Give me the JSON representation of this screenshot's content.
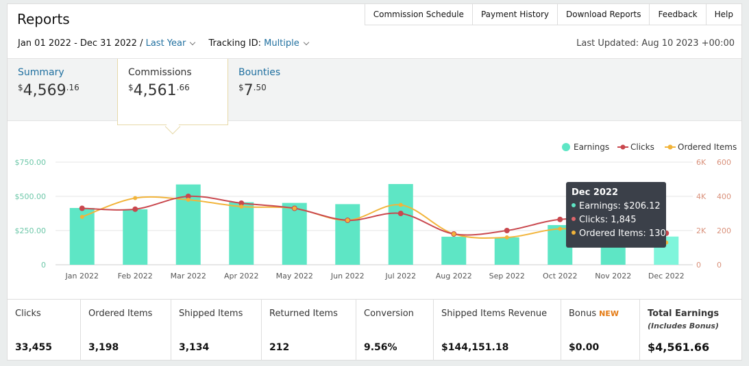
{
  "header": {
    "title": "Reports"
  },
  "topnav": [
    "Commission Schedule",
    "Payment History",
    "Download Reports",
    "Feedback",
    "Help"
  ],
  "filters": {
    "date_range": "Jan 01 2022 - Dec 31 2022 /",
    "period_link": "Last Year",
    "tracking_label": "Tracking ID:",
    "tracking_value": "Multiple",
    "last_updated": "Last Updated: Aug 10 2023 +00:00"
  },
  "tabs": [
    {
      "label": "Summary",
      "dollar": "$",
      "whole": "4,569",
      "cents": ".16"
    },
    {
      "label": "Commissions",
      "dollar": "$",
      "whole": "4,561",
      "cents": ".66"
    },
    {
      "label": "Bounties",
      "dollar": "$",
      "whole": "7",
      "cents": ".50"
    }
  ],
  "colors": {
    "earnings": "#5ee6c5",
    "earnings_highlight": "#7ff5db",
    "clicks": "#c9484e",
    "ordered": "#f2b43a",
    "link": "#1f6f9f",
    "tooltip_bg": "#3b4049",
    "new_badge": "#e47911"
  },
  "chart_data": {
    "type": "bar",
    "categories": [
      "Jan 2022",
      "Feb 2022",
      "Mar 2022",
      "Apr 2022",
      "May 2022",
      "Jun 2022",
      "Jul 2022",
      "Aug 2022",
      "Sep 2022",
      "Oct 2022",
      "Nov 2022",
      "Dec 2022"
    ],
    "series": [
      {
        "name": "Earnings",
        "type": "bar",
        "axis": "left",
        "values": [
          415,
          405,
          587,
          457,
          452,
          443,
          590,
          205,
          200,
          290,
          215,
          206.12
        ]
      },
      {
        "name": "Clicks",
        "type": "line",
        "axis": "right1",
        "values": [
          3300,
          3250,
          4000,
          3600,
          3300,
          2600,
          3000,
          1800,
          2000,
          2650,
          2600,
          1845
        ]
      },
      {
        "name": "Ordered Items",
        "type": "line",
        "axis": "right2",
        "values": [
          280,
          390,
          380,
          340,
          330,
          260,
          350,
          180,
          160,
          210,
          190,
          130
        ]
      }
    ],
    "left_ticks": [
      "0",
      "$250.00",
      "$500.00",
      "$750.00"
    ],
    "right1_ticks": [
      "0",
      "2K",
      "4K",
      "6K"
    ],
    "right2_ticks": [
      "0",
      "200",
      "400",
      "600"
    ],
    "ylim_left": [
      0,
      750
    ],
    "ylim_right1": [
      0,
      6000
    ],
    "ylim_right2": [
      0,
      600
    ],
    "legend_position": "top-right",
    "grid": true,
    "highlighted_index": 11
  },
  "tooltip": {
    "title": "Dec 2022",
    "earnings": "Earnings: $206.12",
    "clicks": "Clicks: 1,845",
    "ordered": "Ordered Items: 130"
  },
  "stats": [
    {
      "label": "Clicks",
      "value": "33,455"
    },
    {
      "label": "Ordered Items",
      "value": "3,198"
    },
    {
      "label": "Shipped Items",
      "value": "3,134"
    },
    {
      "label": "Returned Items",
      "value": "212"
    },
    {
      "label": "Conversion",
      "value": "9.56%"
    },
    {
      "label": "Shipped Items Revenue",
      "value": "$144,151.18"
    },
    {
      "label": "Bonus",
      "badge": "NEW",
      "value": "$0.00"
    },
    {
      "label": "Total Earnings",
      "sub": "(Includes Bonus)",
      "value": "$4,561.66"
    }
  ]
}
